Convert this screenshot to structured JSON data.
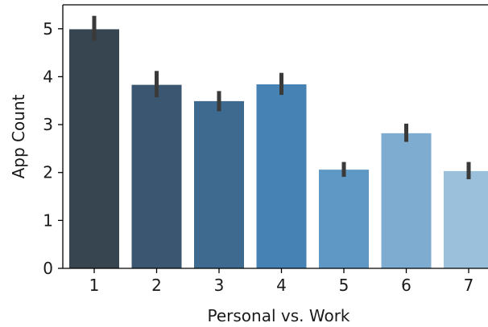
{
  "chart_data": {
    "type": "bar",
    "title": "",
    "xlabel": "Personal vs. Work",
    "ylabel": "App Count",
    "categories": [
      "1",
      "2",
      "3",
      "4",
      "5",
      "6",
      "7"
    ],
    "values": [
      4.99,
      3.83,
      3.49,
      3.84,
      2.06,
      2.82,
      2.03
    ],
    "error_low": [
      4.75,
      3.57,
      3.28,
      3.62,
      1.91,
      2.64,
      1.86
    ],
    "error_high": [
      5.27,
      4.12,
      3.7,
      4.08,
      2.22,
      3.02,
      2.22
    ],
    "ylim": [
      0,
      5.5
    ],
    "yticks": [
      0,
      1,
      2,
      3,
      4,
      5
    ],
    "ytick_labels": [
      "0",
      "1",
      "2",
      "3",
      "4",
      "5"
    ],
    "grid": false,
    "legend": "none",
    "bar_colors": [
      "#36454f",
      "#3a5670",
      "#3e6a8f",
      "#4682b4",
      "#5f98c4",
      "#7eacd0",
      "#9bc0dc"
    ],
    "error_color": "#3a3a3a"
  }
}
